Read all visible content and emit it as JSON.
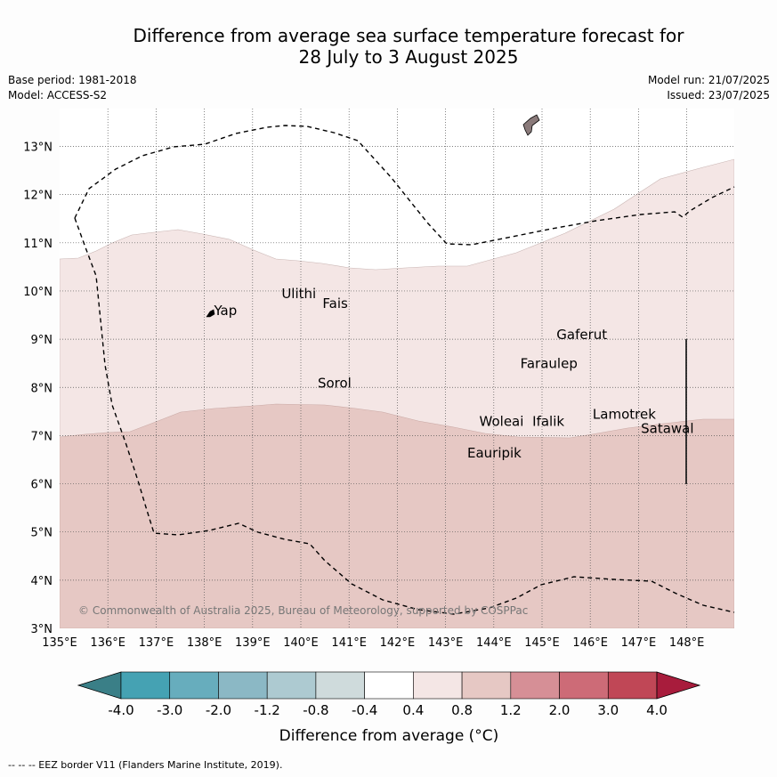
{
  "title": {
    "line1": "Difference from average sea surface temperature forecast for",
    "line2": "28 July to 3 August 2025"
  },
  "meta": {
    "base_period": "Base period: 1981-2018",
    "model": "Model: ACCESS-S2",
    "model_run": "Model run: 21/07/2025",
    "issued": "Issued: 23/07/2025"
  },
  "map": {
    "lon_ticks": [
      "135°E",
      "136°E",
      "137°E",
      "138°E",
      "139°E",
      "140°E",
      "141°E",
      "142°E",
      "143°E",
      "144°E",
      "145°E",
      "146°E",
      "147°E",
      "148°E"
    ],
    "lat_ticks": [
      "3°N",
      "4°N",
      "5°N",
      "6°N",
      "7°N",
      "8°N",
      "9°N",
      "10°N",
      "11°N",
      "12°N",
      "13°N"
    ],
    "places": [
      {
        "name": "Yap",
        "lon": 138.2,
        "lat": 9.5
      },
      {
        "name": "Ulithi",
        "lon": 139.6,
        "lat": 9.85
      },
      {
        "name": "Fais",
        "lon": 140.45,
        "lat": 9.65
      },
      {
        "name": "Gaferut",
        "lon": 145.3,
        "lat": 9.0
      },
      {
        "name": "Faraulep",
        "lon": 144.55,
        "lat": 8.4
      },
      {
        "name": "Sorol",
        "lon": 140.35,
        "lat": 8.0
      },
      {
        "name": "Woleai",
        "lon": 143.7,
        "lat": 7.2
      },
      {
        "name": "Ifalik",
        "lon": 144.8,
        "lat": 7.2
      },
      {
        "name": "Lamotrek",
        "lon": 146.05,
        "lat": 7.35
      },
      {
        "name": "Satawal",
        "lon": 147.05,
        "lat": 7.05
      },
      {
        "name": "Eauripik",
        "lon": 143.45,
        "lat": 6.55
      }
    ],
    "fill_colors": {
      "band_0p4_0p8": "#f4e6e5",
      "band_0p8_1p2": "#e6c8c4"
    },
    "copyright": "© Commonwealth of Australia 2025, Bureau of Meteorology, supported by COSPPac"
  },
  "colorbar": {
    "labels": [
      "-4.0",
      "-3.0",
      "-2.0",
      "-1.2",
      "-0.8",
      "-0.4",
      "0.4",
      "0.8",
      "1.2",
      "2.0",
      "3.0",
      "4.0"
    ],
    "colors": [
      "#3a7f87",
      "#45a2b3",
      "#67adbd",
      "#8bb8c5",
      "#adcad1",
      "#cfdbdc",
      "#ffffff",
      "#f4e6e5",
      "#e6c8c4",
      "#d68f96",
      "#cd6b77",
      "#c04756",
      "#a81c3c"
    ],
    "title": "Difference from average (°C)"
  },
  "footer": "--  --  -- EEZ border V11 (Flanders Marine Institute, 2019)."
}
